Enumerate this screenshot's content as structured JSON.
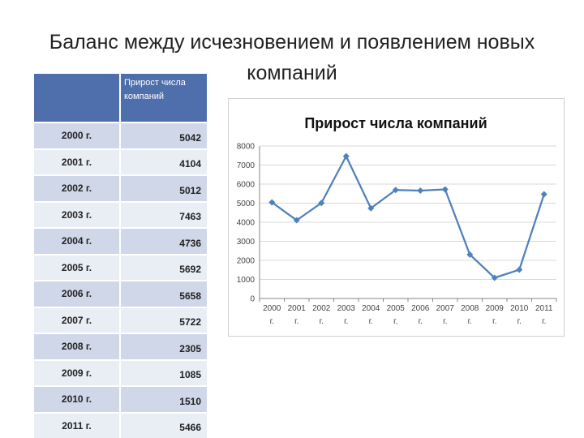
{
  "slide": {
    "title": "Баланс между исчезновением и появлением новых компаний"
  },
  "table": {
    "year_header": "",
    "value_header": "Прирост числа компаний",
    "rows": [
      {
        "year": "2000 г.",
        "value": "5042"
      },
      {
        "year": "2001 г.",
        "value": "4104"
      },
      {
        "year": "2002 г.",
        "value": "5012"
      },
      {
        "year": "2003 г.",
        "value": "7463"
      },
      {
        "year": "2004 г.",
        "value": "4736"
      },
      {
        "year": "2005 г.",
        "value": "5692"
      },
      {
        "year": "2006 г.",
        "value": "5658"
      },
      {
        "year": "2007 г.",
        "value": "5722"
      },
      {
        "year": "2008 г.",
        "value": "2305"
      },
      {
        "year": "2009 г.",
        "value": "1085"
      },
      {
        "year": "2010 г.",
        "value": "1510"
      },
      {
        "year": "2011 г.",
        "value": "5466"
      }
    ]
  },
  "chart_data": {
    "type": "line",
    "title": "Прирост числа компаний",
    "categories": [
      "2000 г.",
      "2001 г.",
      "2002 г.",
      "2003 г.",
      "2004 г.",
      "2005 г.",
      "2006 г.",
      "2007 г.",
      "2008 г.",
      "2009 г.",
      "2010 г.",
      "2011 г."
    ],
    "series": [
      {
        "values": [
          5042,
          4104,
          5012,
          7463,
          4736,
          5692,
          5658,
          5722,
          2305,
          1085,
          1510,
          5466
        ],
        "color": "#4f81bd"
      }
    ],
    "ylim": [
      0,
      8000
    ],
    "yticks": [
      0,
      1000,
      2000,
      3000,
      4000,
      5000,
      6000,
      7000,
      8000
    ],
    "grid": true,
    "legend": "none",
    "marker": "diamond"
  }
}
